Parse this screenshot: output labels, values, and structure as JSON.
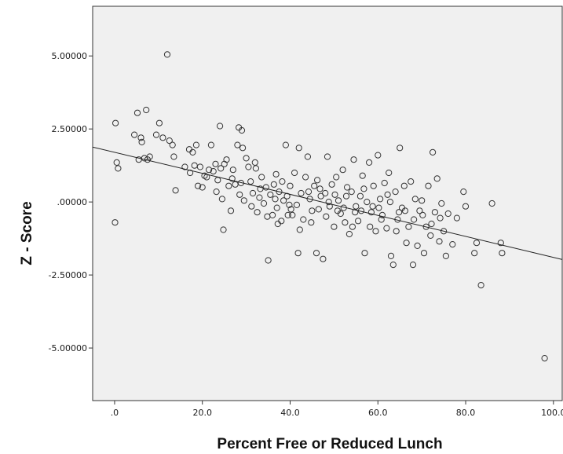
{
  "chart_data": {
    "type": "scatter",
    "xlabel": "Percent Free or Reduced Lunch",
    "ylabel": "Z - Score",
    "xlim": [
      -5,
      102
    ],
    "ylim": [
      -6.8,
      6.7
    ],
    "x_ticks": [
      0,
      20,
      40,
      60,
      80,
      100
    ],
    "x_tick_labels": [
      ".0",
      "20.0",
      "40.0",
      "60.0",
      "80.0",
      "100.0"
    ],
    "y_ticks": [
      5,
      2.5,
      0,
      -2.5,
      -5
    ],
    "y_tick_labels": [
      "5.00000",
      "2.50000",
      ".00000",
      "-2.50000",
      "-5.00000"
    ],
    "grid": false,
    "colors": {
      "plot_background": "#f0f0f0",
      "marker": "#333333",
      "fit_line": "#222222",
      "axis": "#333333"
    },
    "fit_line": {
      "x": [
        -5,
        102
      ],
      "y": [
        1.88,
        -1.97
      ]
    },
    "points": [
      [
        0.2,
        2.7
      ],
      [
        0.5,
        1.35
      ],
      [
        0.8,
        1.15
      ],
      [
        0.1,
        -0.7
      ],
      [
        4.5,
        2.3
      ],
      [
        5.2,
        3.05
      ],
      [
        5.5,
        1.45
      ],
      [
        6.0,
        2.2
      ],
      [
        6.2,
        2.05
      ],
      [
        6.8,
        1.5
      ],
      [
        7.2,
        3.15
      ],
      [
        7.5,
        1.45
      ],
      [
        8.0,
        1.55
      ],
      [
        9.5,
        2.3
      ],
      [
        10.2,
        2.7
      ],
      [
        11.0,
        2.2
      ],
      [
        12.0,
        5.05
      ],
      [
        12.5,
        2.1
      ],
      [
        13.2,
        1.95
      ],
      [
        13.5,
        1.55
      ],
      [
        13.9,
        0.4
      ],
      [
        16.0,
        1.2
      ],
      [
        17.0,
        1.8
      ],
      [
        17.2,
        1.0
      ],
      [
        17.8,
        1.7
      ],
      [
        18.2,
        1.25
      ],
      [
        18.6,
        1.95
      ],
      [
        19.0,
        0.55
      ],
      [
        19.5,
        1.2
      ],
      [
        20.0,
        0.5
      ],
      [
        20.5,
        0.9
      ],
      [
        21.0,
        0.85
      ],
      [
        22.0,
        1.95
      ],
      [
        22.5,
        1.05
      ],
      [
        23.0,
        1.3
      ],
      [
        23.5,
        0.75
      ],
      [
        24.0,
        2.6
      ],
      [
        24.2,
        1.15
      ],
      [
        24.5,
        0.1
      ],
      [
        24.8,
        -0.95
      ],
      [
        25.0,
        1.3
      ],
      [
        25.5,
        1.45
      ],
      [
        26.0,
        0.55
      ],
      [
        26.5,
        -0.3
      ],
      [
        27.0,
        1.1
      ],
      [
        27.5,
        0.6
      ],
      [
        28.0,
        1.95
      ],
      [
        28.3,
        2.55
      ],
      [
        28.5,
        0.25
      ],
      [
        29.0,
        2.45
      ],
      [
        29.2,
        1.85
      ],
      [
        29.5,
        0.05
      ],
      [
        30.0,
        1.5
      ],
      [
        30.5,
        1.2
      ],
      [
        31.0,
        0.7
      ],
      [
        31.5,
        0.3
      ],
      [
        32.0,
        1.35
      ],
      [
        32.2,
        1.15
      ],
      [
        32.5,
        -0.35
      ],
      [
        33.0,
        0.15
      ],
      [
        33.5,
        0.85
      ],
      [
        34.0,
        -0.05
      ],
      [
        34.5,
        0.5
      ],
      [
        35.0,
        -2.0
      ],
      [
        35.5,
        0.25
      ],
      [
        36.0,
        -0.45
      ],
      [
        36.3,
        0.6
      ],
      [
        36.8,
        0.95
      ],
      [
        37.0,
        -0.2
      ],
      [
        37.5,
        0.35
      ],
      [
        38.0,
        -0.65
      ],
      [
        38.5,
        0.05
      ],
      [
        39.0,
        1.95
      ],
      [
        39.3,
        0.2
      ],
      [
        39.8,
        -0.1
      ],
      [
        40.0,
        0.55
      ],
      [
        40.5,
        -0.45
      ],
      [
        41.0,
        1.0
      ],
      [
        41.5,
        -0.1
      ],
      [
        41.8,
        -1.75
      ],
      [
        42.0,
        1.85
      ],
      [
        42.5,
        0.3
      ],
      [
        43.0,
        -0.6
      ],
      [
        43.5,
        0.85
      ],
      [
        44.0,
        1.55
      ],
      [
        44.5,
        0.1
      ],
      [
        45.0,
        -0.3
      ],
      [
        45.5,
        0.55
      ],
      [
        46.0,
        -1.75
      ],
      [
        46.5,
        -0.25
      ],
      [
        47.0,
        0.2
      ],
      [
        47.5,
        -1.95
      ],
      [
        48.0,
        0.3
      ],
      [
        48.5,
        1.55
      ],
      [
        49.0,
        -0.15
      ],
      [
        49.5,
        0.6
      ],
      [
        50.0,
        -0.85
      ],
      [
        50.5,
        0.85
      ],
      [
        51.0,
        0.05
      ],
      [
        51.5,
        -0.4
      ],
      [
        52.0,
        1.1
      ],
      [
        52.5,
        -0.7
      ],
      [
        53.0,
        0.5
      ],
      [
        53.5,
        -1.1
      ],
      [
        54.0,
        0.35
      ],
      [
        54.5,
        1.45
      ],
      [
        55.0,
        -0.15
      ],
      [
        55.5,
        -0.65
      ],
      [
        56.0,
        0.2
      ],
      [
        56.5,
        0.9
      ],
      [
        57.0,
        -1.75
      ],
      [
        57.5,
        0.0
      ],
      [
        58.0,
        1.35
      ],
      [
        58.5,
        -0.35
      ],
      [
        59.0,
        0.55
      ],
      [
        59.5,
        -1.0
      ],
      [
        60.0,
        1.6
      ],
      [
        60.5,
        0.1
      ],
      [
        61.0,
        -0.45
      ],
      [
        61.5,
        0.65
      ],
      [
        62.0,
        -0.9
      ],
      [
        62.5,
        1.0
      ],
      [
        63.0,
        -1.85
      ],
      [
        63.5,
        -2.15
      ],
      [
        64.0,
        0.35
      ],
      [
        64.5,
        -0.6
      ],
      [
        65.0,
        1.85
      ],
      [
        65.5,
        -0.2
      ],
      [
        66.0,
        0.55
      ],
      [
        66.5,
        -1.4
      ],
      [
        67.0,
        -0.85
      ],
      [
        67.5,
        0.7
      ],
      [
        68.0,
        -2.15
      ],
      [
        68.5,
        0.1
      ],
      [
        69.0,
        -1.5
      ],
      [
        69.5,
        -0.3
      ],
      [
        70.0,
        0.05
      ],
      [
        70.5,
        -1.75
      ],
      [
        71.0,
        -0.85
      ],
      [
        71.5,
        0.55
      ],
      [
        72.0,
        -1.15
      ],
      [
        72.5,
        1.7
      ],
      [
        73.0,
        -0.35
      ],
      [
        73.5,
        0.8
      ],
      [
        74.0,
        -1.35
      ],
      [
        74.5,
        -0.05
      ],
      [
        75.0,
        -1.0
      ],
      [
        75.5,
        -1.85
      ],
      [
        76.0,
        -0.4
      ],
      [
        77.0,
        -1.45
      ],
      [
        78.0,
        -0.55
      ],
      [
        79.5,
        0.35
      ],
      [
        80.0,
        -0.15
      ],
      [
        82.0,
        -1.75
      ],
      [
        82.5,
        -1.4
      ],
      [
        83.5,
        -2.85
      ],
      [
        86.0,
        -0.05
      ],
      [
        88.0,
        -1.4
      ],
      [
        88.3,
        -1.75
      ],
      [
        98.0,
        -5.35
      ],
      [
        21.5,
        1.1
      ],
      [
        23.2,
        0.35
      ],
      [
        26.8,
        0.8
      ],
      [
        28.8,
        0.65
      ],
      [
        31.2,
        -0.15
      ],
      [
        33.2,
        0.45
      ],
      [
        34.8,
        -0.5
      ],
      [
        36.6,
        0.1
      ],
      [
        38.2,
        0.7
      ],
      [
        40.2,
        -0.25
      ],
      [
        42.2,
        -0.95
      ],
      [
        44.2,
        0.35
      ],
      [
        46.2,
        0.75
      ],
      [
        48.2,
        -0.5
      ],
      [
        50.2,
        0.25
      ],
      [
        52.2,
        -0.2
      ],
      [
        54.2,
        -0.85
      ],
      [
        56.2,
        -0.3
      ],
      [
        58.2,
        -0.85
      ],
      [
        60.2,
        -0.2
      ],
      [
        62.2,
        0.25
      ],
      [
        64.2,
        -1.0
      ],
      [
        66.2,
        -0.3
      ],
      [
        68.2,
        -0.6
      ],
      [
        70.2,
        -0.45
      ],
      [
        72.2,
        -0.75
      ],
      [
        74.2,
        -0.55
      ],
      [
        44.8,
        -0.7
      ],
      [
        46.8,
        0.45
      ],
      [
        48.8,
        0.0
      ],
      [
        50.8,
        -0.3
      ],
      [
        52.8,
        0.2
      ],
      [
        54.8,
        -0.35
      ],
      [
        56.8,
        0.45
      ],
      [
        58.8,
        -0.15
      ],
      [
        60.8,
        -0.6
      ],
      [
        62.8,
        0.0
      ],
      [
        64.8,
        -0.35
      ],
      [
        37.2,
        -0.75
      ],
      [
        39.5,
        -0.45
      ]
    ]
  }
}
